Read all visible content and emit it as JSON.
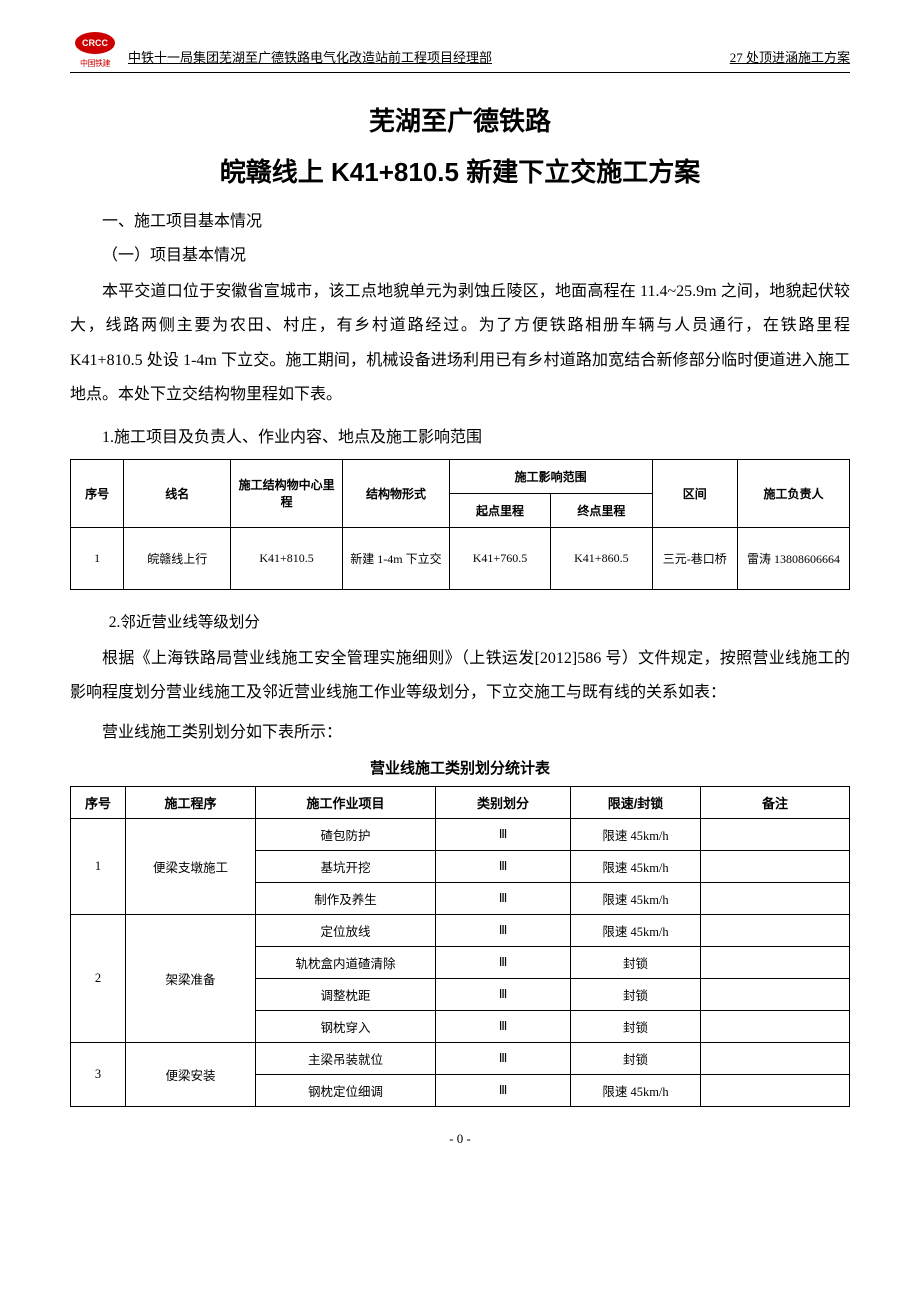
{
  "header": {
    "logo_upper": "CRCC",
    "logo_lower": "中国铁建",
    "left": "中铁十一局集团芜湖至广德铁路电气化改造站前工程项目经理部",
    "right": "27 处顶进涵施工方案"
  },
  "titles": {
    "line1": "芜湖至广德铁路",
    "line2": "皖赣线上 K41+810.5 新建下立交施工方案"
  },
  "headings": {
    "h1": "一、施工项目基本情况",
    "h1_1": "（一）项目基本情况",
    "p1": "本平交道口位于安徽省宣城市，该工点地貌单元为剥蚀丘陵区，地面高程在 11.4~25.9m 之间，地貌起伏较大，线路两侧主要为农田、村庄，有乡村道路经过。为了方便铁路相册车辆与人员通行，在铁路里程 K41+810.5 处设 1-4m 下立交。施工期间，机械设备进场利用已有乡村道路加宽结合新修部分临时便道进入施工地点。本处下立交结构物里程如下表。",
    "num1": "1.施工项目及负责人、作业内容、地点及施工影响范围",
    "num2": "2.邻近营业线等级划分",
    "p2": "根据《上海铁路局营业线施工安全管理实施细则》（上铁运发[2012]586 号）文件规定，按照营业线施工的影响程度划分营业线施工及邻近营业线施工作业等级划分，下立交施工与既有线的关系如表：",
    "p3": "营业线施工类别划分如下表所示：",
    "caption2": "营业线施工类别划分统计表"
  },
  "table1": {
    "headers": {
      "seq": "序号",
      "line": "线名",
      "mile": "施工结构物中心里程",
      "form": "结构物形式",
      "scope": "施工影响范围",
      "start": "起点里程",
      "end": "终点里程",
      "section": "区间",
      "person": "施工负责人"
    },
    "row": {
      "seq": "1",
      "line": "皖赣线上行",
      "mile": "K41+810.5",
      "form": "新建 1-4m 下立交",
      "start": "K41+760.5",
      "end": "K41+860.5",
      "section": "三元-巷口桥",
      "person": "雷涛 13808606664"
    }
  },
  "table2": {
    "headers": {
      "seq": "序号",
      "proc": "施工程序",
      "item": "施工作业项目",
      "cat": "类别划分",
      "limit": "限速/封锁",
      "note": "备注"
    },
    "groups": [
      {
        "seq": "1",
        "proc": "便梁支墩施工",
        "rows": [
          {
            "item": "碴包防护",
            "cat": "Ⅲ",
            "limit": "限速 45km/h",
            "note": ""
          },
          {
            "item": "基坑开挖",
            "cat": "Ⅲ",
            "limit": "限速 45km/h",
            "note": ""
          },
          {
            "item": "制作及养生",
            "cat": "Ⅲ",
            "limit": "限速 45km/h",
            "note": ""
          }
        ]
      },
      {
        "seq": "2",
        "proc": "架梁准备",
        "rows": [
          {
            "item": "定位放线",
            "cat": "Ⅲ",
            "limit": "限速 45km/h",
            "note": ""
          },
          {
            "item": "轨枕盒内道碴清除",
            "cat": "Ⅲ",
            "limit": "封锁",
            "note": ""
          },
          {
            "item": "调整枕距",
            "cat": "Ⅲ",
            "limit": "封锁",
            "note": ""
          },
          {
            "item": "钢枕穿入",
            "cat": "Ⅲ",
            "limit": "封锁",
            "note": ""
          }
        ]
      },
      {
        "seq": "3",
        "proc": "便梁安装",
        "rows": [
          {
            "item": "主梁吊装就位",
            "cat": "Ⅲ",
            "limit": "封锁",
            "note": ""
          },
          {
            "item": "钢枕定位细调",
            "cat": "Ⅲ",
            "limit": "限速 45km/h",
            "note": ""
          }
        ]
      }
    ]
  },
  "footer": {
    "page": "- 0 -"
  },
  "colors": {
    "logo_red": "#cc0000",
    "text": "#000000",
    "bg": "#ffffff"
  }
}
